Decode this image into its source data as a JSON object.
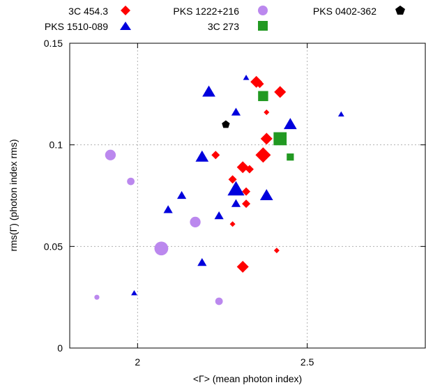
{
  "chart_data": {
    "type": "scatter",
    "title": "",
    "xlabel": "<Γ> (mean photon index)",
    "ylabel": "rms(Γ) (photon index rms)",
    "xlim": [
      1.8,
      2.85
    ],
    "ylim": [
      0,
      0.15
    ],
    "xticks": [
      {
        "value": 2,
        "label": "2"
      },
      {
        "value": 2.5,
        "label": "2.5"
      }
    ],
    "yticks": [
      {
        "value": 0,
        "label": "0"
      },
      {
        "value": 0.05,
        "label": "0.05"
      },
      {
        "value": 0.1,
        "label": "0.1"
      },
      {
        "value": 0.15,
        "label": "0.15"
      }
    ],
    "grid": true,
    "legend_position": "top",
    "series": [
      {
        "name": "3C 454.3",
        "marker": "diamond",
        "color": "#ff0000",
        "points": [
          {
            "x": 2.35,
            "y": 0.131,
            "size": 2
          },
          {
            "x": 2.36,
            "y": 0.13,
            "size": 1
          },
          {
            "x": 2.42,
            "y": 0.126,
            "size": 2
          },
          {
            "x": 2.38,
            "y": 0.116,
            "size": 0
          },
          {
            "x": 2.38,
            "y": 0.103,
            "size": 2
          },
          {
            "x": 2.37,
            "y": 0.095,
            "size": 3
          },
          {
            "x": 2.23,
            "y": 0.095,
            "size": 1
          },
          {
            "x": 2.31,
            "y": 0.089,
            "size": 2
          },
          {
            "x": 2.33,
            "y": 0.088,
            "size": 1
          },
          {
            "x": 2.28,
            "y": 0.083,
            "size": 1
          },
          {
            "x": 2.32,
            "y": 0.077,
            "size": 1
          },
          {
            "x": 2.32,
            "y": 0.071,
            "size": 1
          },
          {
            "x": 2.28,
            "y": 0.061,
            "size": 0
          },
          {
            "x": 2.41,
            "y": 0.048,
            "size": 0
          },
          {
            "x": 2.31,
            "y": 0.04,
            "size": 2
          }
        ]
      },
      {
        "name": "PKS 1222+216",
        "marker": "circle",
        "color": "#bb88ee",
        "points": [
          {
            "x": 1.92,
            "y": 0.095,
            "size": 2
          },
          {
            "x": 1.98,
            "y": 0.082,
            "size": 1
          },
          {
            "x": 2.17,
            "y": 0.062,
            "size": 2
          },
          {
            "x": 2.07,
            "y": 0.049,
            "size": 3
          },
          {
            "x": 1.88,
            "y": 0.025,
            "size": 0
          },
          {
            "x": 2.24,
            "y": 0.023,
            "size": 1
          }
        ]
      },
      {
        "name": "PKS 0402-362",
        "marker": "pentagon",
        "color": "#000000",
        "points": [
          {
            "x": 2.26,
            "y": 0.11,
            "size": 1
          }
        ]
      },
      {
        "name": "PKS 1510-089",
        "marker": "triangle",
        "color": "#0000dd",
        "points": [
          {
            "x": 2.32,
            "y": 0.133,
            "size": 0
          },
          {
            "x": 2.21,
            "y": 0.126,
            "size": 2
          },
          {
            "x": 2.29,
            "y": 0.116,
            "size": 1
          },
          {
            "x": 2.45,
            "y": 0.11,
            "size": 2
          },
          {
            "x": 2.6,
            "y": 0.115,
            "size": 0
          },
          {
            "x": 2.19,
            "y": 0.094,
            "size": 2
          },
          {
            "x": 2.29,
            "y": 0.078,
            "size": 3
          },
          {
            "x": 2.38,
            "y": 0.075,
            "size": 2
          },
          {
            "x": 2.13,
            "y": 0.075,
            "size": 1
          },
          {
            "x": 2.29,
            "y": 0.071,
            "size": 1
          },
          {
            "x": 2.09,
            "y": 0.068,
            "size": 1
          },
          {
            "x": 2.24,
            "y": 0.065,
            "size": 1
          },
          {
            "x": 2.19,
            "y": 0.042,
            "size": 1
          },
          {
            "x": 1.99,
            "y": 0.027,
            "size": 0
          }
        ]
      },
      {
        "name": "3C 273",
        "marker": "square",
        "color": "#229922",
        "points": [
          {
            "x": 2.37,
            "y": 0.124,
            "size": 2
          },
          {
            "x": 2.42,
            "y": 0.103,
            "size": 3
          },
          {
            "x": 2.45,
            "y": 0.094,
            "size": 1
          }
        ]
      }
    ]
  }
}
